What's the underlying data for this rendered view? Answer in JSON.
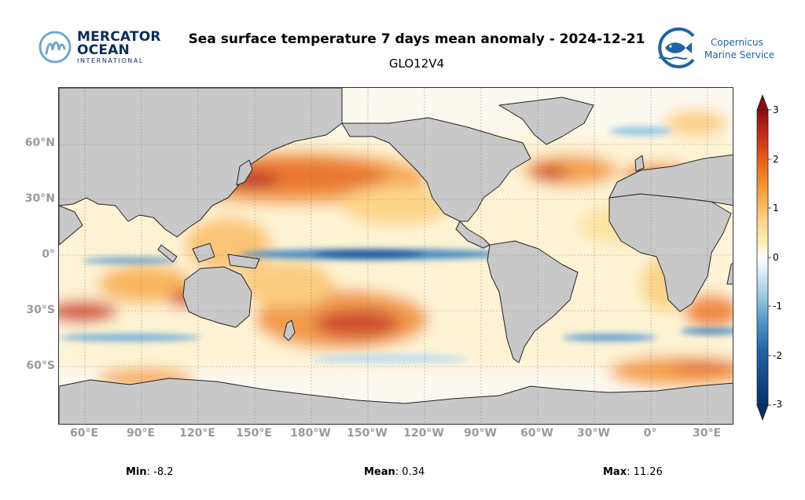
{
  "header": {
    "title": "Sea surface temperature 7 days mean anomaly - 2024-12-21",
    "subtitle": "GLO12V4"
  },
  "logos": {
    "mercator": {
      "line1": "MERCATOR",
      "line2": "OCEAN",
      "line3": "INTERNATIONAL"
    },
    "copernicus": {
      "line1": "Copernicus",
      "line2": "Marine Service"
    }
  },
  "map": {
    "projection": "equirectangular",
    "latitude_labels": [
      "60°N",
      "30°N",
      "0°",
      "30°S",
      "60°S"
    ],
    "longitude_labels": [
      "60°E",
      "90°E",
      "120°E",
      "150°E",
      "180°W",
      "150°W",
      "120°W",
      "90°W",
      "60°W",
      "30°W",
      "0°",
      "30°E"
    ],
    "land_color": "#c8c8c8",
    "gridlines": true
  },
  "colorbar": {
    "ticks": [
      "3",
      "2",
      "1",
      "0",
      "-1",
      "-2",
      "-3"
    ],
    "range": [
      -3,
      3
    ],
    "extend": "both",
    "colors": [
      "#08306b",
      "#1f62a8",
      "#4a98c9",
      "#9ccae1",
      "#dbedf6",
      "#ffffff",
      "#fff0b3",
      "#fdd384",
      "#f9a13f",
      "#ec6519",
      "#c7301a",
      "#8a0b12"
    ]
  },
  "stats": {
    "min_label": "Min",
    "min_value": ": -8.2",
    "mean_label": "Mean",
    "mean_value": ": 0.34",
    "max_label": "Max",
    "max_value": ": 11.26"
  }
}
